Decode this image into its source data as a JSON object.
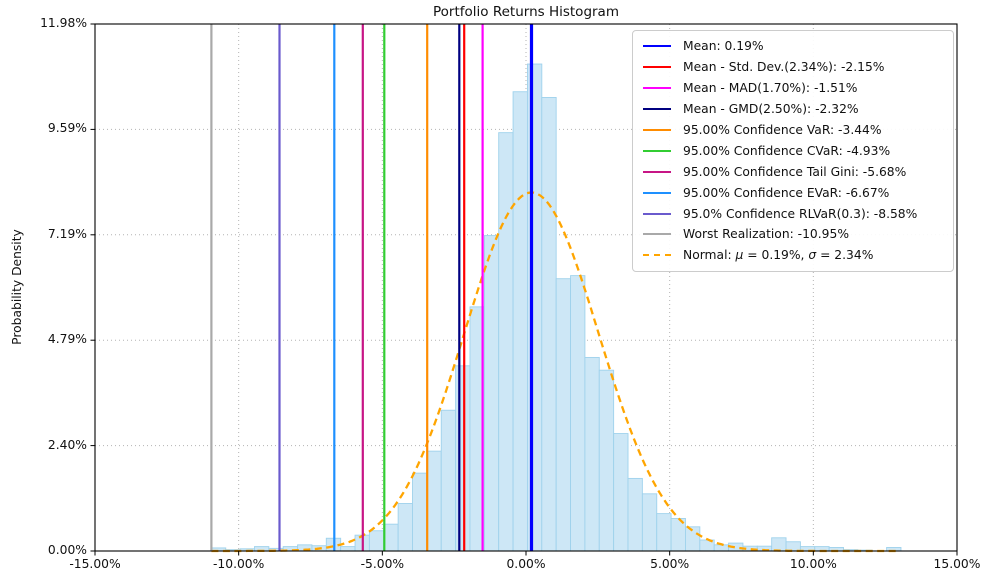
{
  "title": "Portfolio Returns Histogram",
  "axes": {
    "ylabel": "Probability Density",
    "x_range": [
      -15,
      15
    ],
    "y_range": [
      0,
      11.98
    ],
    "x_ticks": [
      {
        "v": -15,
        "label": "-15.00%"
      },
      {
        "v": -10,
        "label": "-10.00%"
      },
      {
        "v": -5,
        "label": "-5.00%"
      },
      {
        "v": 0,
        "label": "0.00%"
      },
      {
        "v": 5,
        "label": "5.00%"
      },
      {
        "v": 10,
        "label": "10.00%"
      },
      {
        "v": 15,
        "label": "15.00%"
      }
    ],
    "y_ticks": [
      {
        "v": 0,
        "label": "0.00%"
      },
      {
        "v": 2.396,
        "label": "2.40%"
      },
      {
        "v": 4.792,
        "label": "4.79%"
      },
      {
        "v": 7.188,
        "label": "7.19%"
      },
      {
        "v": 9.584,
        "label": "9.59%"
      },
      {
        "v": 11.98,
        "label": "11.98%"
      }
    ]
  },
  "chart_data": {
    "type": "bar",
    "subtype": "returns-histogram-with-risk-measure-lines",
    "title": "Portfolio Returns Histogram",
    "xlabel": "",
    "ylabel": "Probability Density",
    "xlim": [
      -15,
      15
    ],
    "ylim": [
      0,
      11.98
    ],
    "grid": "dotted, both axes",
    "legend_position": "upper right",
    "histogram": {
      "units": "percent",
      "bin_start": -10.95,
      "bin_width": 0.5,
      "heights": [
        0.07,
        0.03,
        0.05,
        0.1,
        0.06,
        0.1,
        0.14,
        0.12,
        0.29,
        0.1,
        0.36,
        0.46,
        0.61,
        1.08,
        1.77,
        2.27,
        3.2,
        4.21,
        5.55,
        7.17,
        9.51,
        10.44,
        11.07,
        10.31,
        6.19,
        6.26,
        4.4,
        4.11,
        2.67,
        1.65,
        1.3,
        0.85,
        0.74,
        0.55,
        0.25,
        0.14,
        0.18,
        0.11,
        0.11,
        0.3,
        0.21,
        0.1,
        0.1,
        0.08,
        0.03,
        0.02,
        0.0,
        0.08
      ],
      "fill_color": "#cde7f6",
      "edge_color": "#9fd2ec"
    },
    "normal_curve": {
      "id": "normal",
      "label": "Normal: μ = 0.19%, σ = 2.34%",
      "mu_pct": 0.19,
      "sigma_pct": 2.34,
      "peak_density_pct": 8.15,
      "color": "#FFA500",
      "style": "dashed",
      "x_start": -10.95,
      "x_end": 12.95
    },
    "vlines": [
      {
        "id": "mean",
        "label": "Mean: 0.19%",
        "x_pct": 0.19,
        "color": "#0000FF",
        "width": 3.2
      },
      {
        "id": "mean-minus-std",
        "label": "Mean - Std. Dev.(2.34%): -2.15%",
        "x_pct": -2.15,
        "color": "#FF0000",
        "width": 2.2
      },
      {
        "id": "mean-minus-mad",
        "label": "Mean - MAD(1.70%): -1.51%",
        "x_pct": -1.51,
        "color": "#FF00FF",
        "width": 2.2
      },
      {
        "id": "mean-minus-gmd",
        "label": "Mean - GMD(2.50%): -2.32%",
        "x_pct": -2.32,
        "color": "#000080",
        "width": 2.2
      },
      {
        "id": "var",
        "label": "95.00% Confidence VaR: -3.44%",
        "x_pct": -3.44,
        "color": "#FF8C00",
        "width": 2.2
      },
      {
        "id": "cvar",
        "label": "95.00% Confidence CVaR: -4.93%",
        "x_pct": -4.93,
        "color": "#32CD32",
        "width": 2.2
      },
      {
        "id": "tail-gini",
        "label": "95.00% Confidence Tail Gini: -5.68%",
        "x_pct": -5.68,
        "color": "#C71585",
        "width": 2.2
      },
      {
        "id": "evar",
        "label": "95.00% Confidence EVaR: -6.67%",
        "x_pct": -6.67,
        "color": "#1E90FF",
        "width": 2.2
      },
      {
        "id": "rlvar",
        "label": "95.0% Confidence RLVaR(0.3): -8.58%",
        "x_pct": -8.58,
        "color": "#6A5ACD",
        "width": 2.2
      },
      {
        "id": "worst",
        "label": "Worst Realization: -10.95%",
        "x_pct": -10.95,
        "color": "#A9A9A9",
        "width": 2.2
      }
    ]
  }
}
